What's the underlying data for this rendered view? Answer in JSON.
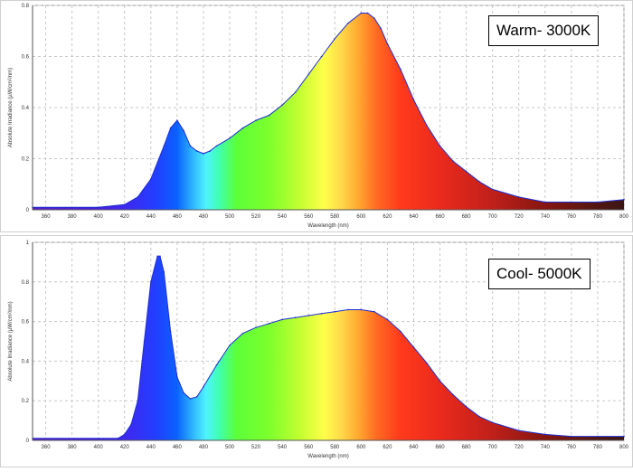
{
  "chart_data": [
    {
      "type": "area",
      "panel": "warm",
      "badge": "Warm- 3000K",
      "xlabel": "Wavelength (nm)",
      "ylabel": "Absolute Irradiance (µW/cm²/nm)",
      "xlim": [
        350,
        800
      ],
      "ylim": [
        0,
        0.8
      ],
      "xticks": [
        360,
        380,
        400,
        420,
        440,
        460,
        480,
        500,
        520,
        540,
        560,
        580,
        600,
        620,
        640,
        660,
        680,
        700,
        720,
        740,
        760,
        780,
        800
      ],
      "yticks": [
        0,
        0.2,
        0.4,
        0.6,
        0.8
      ],
      "x": [
        350,
        400,
        420,
        430,
        440,
        450,
        455,
        460,
        465,
        470,
        475,
        480,
        485,
        490,
        500,
        510,
        520,
        530,
        540,
        550,
        560,
        570,
        580,
        590,
        600,
        605,
        610,
        615,
        620,
        630,
        640,
        650,
        660,
        670,
        680,
        690,
        700,
        720,
        740,
        760,
        780,
        800
      ],
      "values": [
        0.01,
        0.01,
        0.02,
        0.05,
        0.12,
        0.25,
        0.32,
        0.35,
        0.31,
        0.25,
        0.23,
        0.22,
        0.23,
        0.25,
        0.28,
        0.32,
        0.35,
        0.37,
        0.41,
        0.46,
        0.53,
        0.6,
        0.67,
        0.73,
        0.77,
        0.77,
        0.75,
        0.71,
        0.65,
        0.55,
        0.43,
        0.33,
        0.25,
        0.19,
        0.15,
        0.11,
        0.08,
        0.05,
        0.03,
        0.03,
        0.03,
        0.04
      ]
    },
    {
      "type": "area",
      "panel": "cool",
      "badge": "Cool- 5000K",
      "xlabel": "Wavelength (nm)",
      "ylabel": "Absolute Irradiance (µW/cm²/nm)",
      "xlim": [
        350,
        800
      ],
      "ylim": [
        0,
        1
      ],
      "xticks": [
        360,
        380,
        400,
        420,
        440,
        460,
        480,
        500,
        520,
        540,
        560,
        580,
        600,
        620,
        640,
        660,
        680,
        700,
        720,
        740,
        760,
        780,
        800
      ],
      "yticks": [
        0,
        0.2,
        0.4,
        0.6,
        0.8,
        1
      ],
      "x": [
        350,
        400,
        415,
        420,
        425,
        430,
        435,
        440,
        445,
        447,
        450,
        455,
        460,
        465,
        470,
        475,
        480,
        490,
        500,
        510,
        520,
        530,
        540,
        550,
        560,
        570,
        580,
        590,
        600,
        610,
        620,
        630,
        640,
        650,
        660,
        670,
        680,
        690,
        700,
        720,
        740,
        760,
        780,
        800
      ],
      "values": [
        0.01,
        0.01,
        0.01,
        0.03,
        0.08,
        0.2,
        0.5,
        0.8,
        0.93,
        0.93,
        0.85,
        0.55,
        0.32,
        0.24,
        0.21,
        0.22,
        0.27,
        0.38,
        0.48,
        0.54,
        0.57,
        0.59,
        0.61,
        0.62,
        0.63,
        0.64,
        0.65,
        0.66,
        0.66,
        0.65,
        0.61,
        0.55,
        0.47,
        0.39,
        0.3,
        0.23,
        0.17,
        0.12,
        0.09,
        0.05,
        0.03,
        0.02,
        0.02,
        0.02
      ]
    }
  ]
}
